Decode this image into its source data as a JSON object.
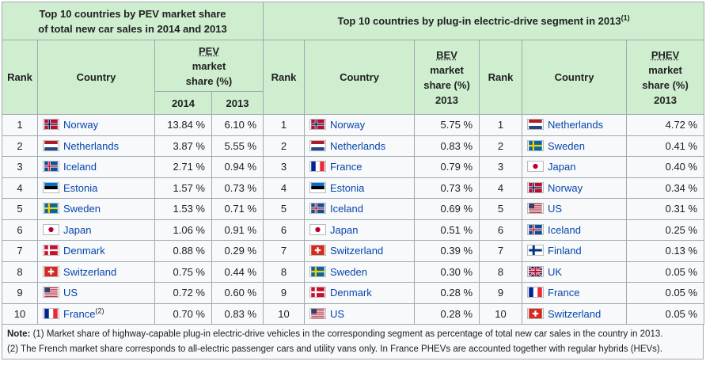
{
  "headers": {
    "left_title_line1": "Top 10 countries by PEV market share",
    "left_title_line2": "of total new car sales in 2014 and 2013",
    "right_title": "Top 10 countries by plug-in electric-drive segment in 2013",
    "right_title_sup": "(1)",
    "rank": "Rank",
    "country": "Country",
    "pev_l1": "PEV",
    "pev_l2": "market",
    "pev_l3": "share (%)",
    "year_2014": "2014",
    "year_2013": "2013",
    "bev_l1": "BEV",
    "bev_l2": "market",
    "bev_l3": "share (%)",
    "bev_l4": "2013",
    "phev_l1": "PHEV",
    "phev_l2": "market",
    "phev_l3": "share (%)",
    "phev_l4": "2013"
  },
  "rows": [
    {
      "pev_rank": "1",
      "pev_country": "Norway",
      "pev_flag": "norway-flag",
      "pev_2014": "13.84 %",
      "pev_2013": "6.10 %",
      "bev_rank": "1",
      "bev_country": "Norway",
      "bev_flag": "norway-flag",
      "bev_share": "5.75 %",
      "phev_rank": "1",
      "phev_country": "Netherlands",
      "phev_flag": "netherlands-flag",
      "phev_share": "4.72 %"
    },
    {
      "pev_rank": "2",
      "pev_country": "Netherlands",
      "pev_flag": "netherlands-flag",
      "pev_2014": "3.87 %",
      "pev_2013": "5.55 %",
      "bev_rank": "2",
      "bev_country": "Netherlands",
      "bev_flag": "netherlands-flag",
      "bev_share": "0.83 %",
      "phev_rank": "2",
      "phev_country": "Sweden",
      "phev_flag": "sweden-flag",
      "phev_share": "0.41 %"
    },
    {
      "pev_rank": "3",
      "pev_country": "Iceland",
      "pev_flag": "iceland-flag",
      "pev_2014": "2.71 %",
      "pev_2013": "0.94 %",
      "bev_rank": "3",
      "bev_country": "France",
      "bev_flag": "france-flag",
      "bev_share": "0.79 %",
      "phev_rank": "3",
      "phev_country": "Japan",
      "phev_flag": "japan-flag",
      "phev_share": "0.40 %"
    },
    {
      "pev_rank": "4",
      "pev_country": "Estonia",
      "pev_flag": "estonia-flag",
      "pev_2014": "1.57 %",
      "pev_2013": "0.73 %",
      "bev_rank": "4",
      "bev_country": "Estonia",
      "bev_flag": "estonia-flag",
      "bev_share": "0.73 %",
      "phev_rank": "4",
      "phev_country": "Norway",
      "phev_flag": "norway-flag",
      "phev_share": "0.34 %"
    },
    {
      "pev_rank": "5",
      "pev_country": "Sweden",
      "pev_flag": "sweden-flag",
      "pev_2014": "1.53 %",
      "pev_2013": "0.71 %",
      "bev_rank": "5",
      "bev_country": "Iceland",
      "bev_flag": "iceland-flag",
      "bev_share": "0.69 %",
      "phev_rank": "5",
      "phev_country": "US",
      "phev_flag": "us-flag",
      "phev_share": "0.31 %"
    },
    {
      "pev_rank": "6",
      "pev_country": "Japan",
      "pev_flag": "japan-flag",
      "pev_2014": "1.06 %",
      "pev_2013": "0.91 %",
      "bev_rank": "6",
      "bev_country": "Japan",
      "bev_flag": "japan-flag",
      "bev_share": "0.51 %",
      "phev_rank": "6",
      "phev_country": "Iceland",
      "phev_flag": "iceland-flag",
      "phev_share": "0.25 %"
    },
    {
      "pev_rank": "7",
      "pev_country": "Denmark",
      "pev_flag": "denmark-flag",
      "pev_2014": "0.88 %",
      "pev_2013": "0.29 %",
      "bev_rank": "7",
      "bev_country": "Switzerland",
      "bev_flag": "switzerland-flag",
      "bev_share": "0.39 %",
      "phev_rank": "7",
      "phev_country": "Finland",
      "phev_flag": "finland-flag",
      "phev_share": "0.13 %"
    },
    {
      "pev_rank": "8",
      "pev_country": "Switzerland",
      "pev_flag": "switzerland-flag",
      "pev_2014": "0.75 %",
      "pev_2013": "0.44 %",
      "bev_rank": "8",
      "bev_country": "Sweden",
      "bev_flag": "sweden-flag",
      "bev_share": "0.30 %",
      "phev_rank": "8",
      "phev_country": "UK",
      "phev_flag": "uk-flag",
      "phev_share": "0.05 %"
    },
    {
      "pev_rank": "9",
      "pev_country": "US",
      "pev_flag": "us-flag",
      "pev_2014": "0.72 %",
      "pev_2013": "0.60 %",
      "bev_rank": "9",
      "bev_country": "Denmark",
      "bev_flag": "denmark-flag",
      "bev_share": "0.28 %",
      "phev_rank": "9",
      "phev_country": "France",
      "phev_flag": "france-flag",
      "phev_share": "0.05 %"
    },
    {
      "pev_rank": "10",
      "pev_country": "France",
      "pev_country_sup": "(2)",
      "pev_flag": "france-flag",
      "pev_2014": "0.70 %",
      "pev_2013": "0.83 %",
      "bev_rank": "10",
      "bev_country": "US",
      "bev_flag": "us-flag",
      "bev_share": "0.28 %",
      "phev_rank": "10",
      "phev_country": "Switzerland",
      "phev_flag": "switzerland-flag",
      "phev_share": "0.05 %"
    }
  ],
  "notes": {
    "note_label": "Note:",
    "note1": " (1) Market share of highway-capable plug-in electric-drive vehicles in the corresponding segment as percentage of total new car sales in the country in 2013.",
    "note2": "(2) The French market share corresponds to all-electric passenger cars and utility vans only. In France PHEVs are accounted together with regular hybrids (HEVs)."
  }
}
